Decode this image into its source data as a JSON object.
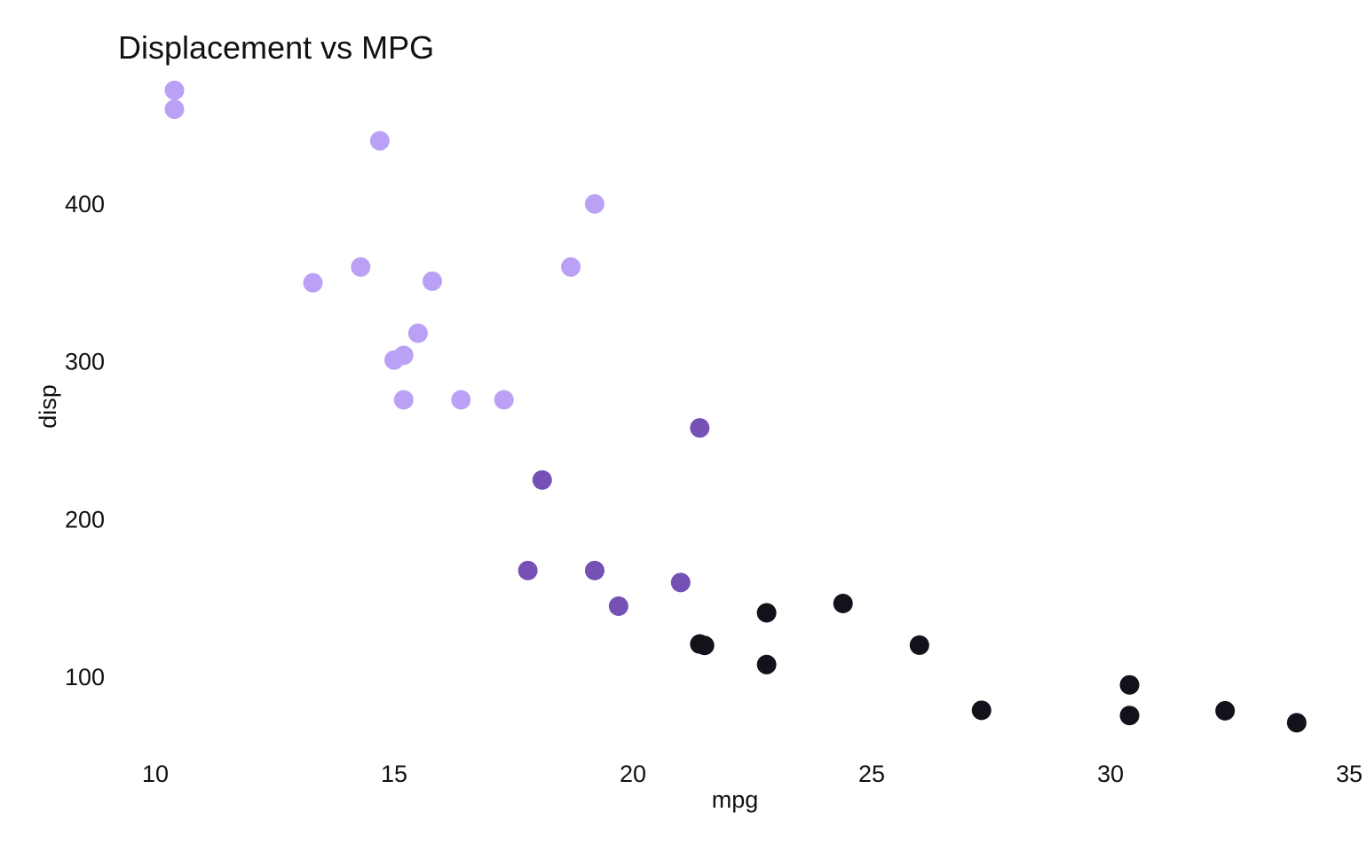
{
  "chart_data": {
    "type": "scatter",
    "title": "Displacement vs MPG",
    "xlabel": "mpg",
    "ylabel": "disp",
    "xlim": [
      9.4,
      35
    ],
    "ylim": [
      45,
      485
    ],
    "xticks": [
      10,
      15,
      20,
      25,
      30,
      35
    ],
    "yticks": [
      100,
      200,
      300,
      400
    ],
    "grid": false,
    "legend": "none",
    "series": [
      {
        "color": "#bba1f6",
        "points": [
          {
            "x": 10.4,
            "y": 472
          },
          {
            "x": 10.4,
            "y": 460
          },
          {
            "x": 14.7,
            "y": 440
          },
          {
            "x": 19.2,
            "y": 400
          },
          {
            "x": 14.3,
            "y": 360
          },
          {
            "x": 18.7,
            "y": 360
          },
          {
            "x": 13.3,
            "y": 350
          },
          {
            "x": 15.8,
            "y": 351
          },
          {
            "x": 15.5,
            "y": 318
          },
          {
            "x": 15.2,
            "y": 304
          },
          {
            "x": 15.0,
            "y": 301
          },
          {
            "x": 15.2,
            "y": 275.8
          },
          {
            "x": 16.4,
            "y": 275.8
          },
          {
            "x": 17.3,
            "y": 275.8
          }
        ]
      },
      {
        "color": "#7551b5",
        "points": [
          {
            "x": 21.4,
            "y": 258
          },
          {
            "x": 18.1,
            "y": 225
          },
          {
            "x": 17.8,
            "y": 167.6
          },
          {
            "x": 19.2,
            "y": 167.6
          },
          {
            "x": 21.0,
            "y": 160
          },
          {
            "x": 19.7,
            "y": 145
          }
        ]
      },
      {
        "color": "#14111a",
        "points": [
          {
            "x": 24.4,
            "y": 146.7
          },
          {
            "x": 22.8,
            "y": 140.8
          },
          {
            "x": 21.4,
            "y": 121
          },
          {
            "x": 21.5,
            "y": 120.1
          },
          {
            "x": 26.0,
            "y": 120.3
          },
          {
            "x": 22.8,
            "y": 108
          },
          {
            "x": 30.4,
            "y": 95.1
          },
          {
            "x": 27.3,
            "y": 79
          },
          {
            "x": 32.4,
            "y": 78.7
          },
          {
            "x": 30.4,
            "y": 75.7
          },
          {
            "x": 33.9,
            "y": 71.1
          }
        ]
      }
    ]
  }
}
